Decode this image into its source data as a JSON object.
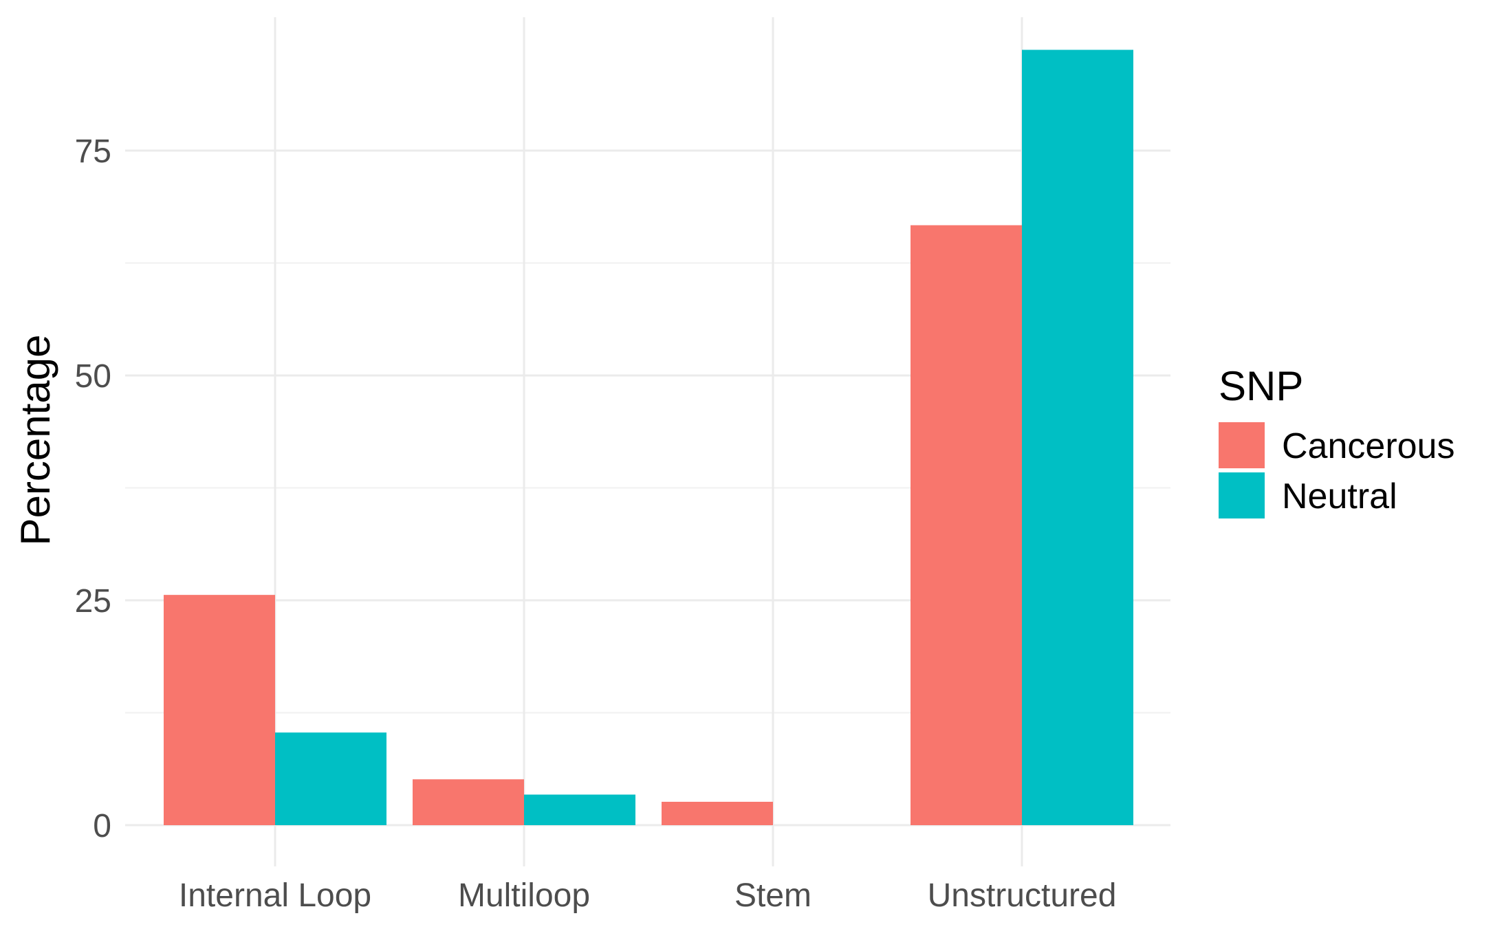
{
  "chart_data": {
    "type": "bar",
    "categories": [
      "Internal Loop",
      "Multiloop",
      "Stem",
      "Unstructured"
    ],
    "series": [
      {
        "name": "Cancerous",
        "color": "#F8766D",
        "values": [
          25.6,
          5.1,
          2.6,
          66.7
        ]
      },
      {
        "name": "Neutral",
        "color": "#00BFC4",
        "values": [
          10.3,
          3.4,
          0.0,
          86.2
        ]
      }
    ],
    "xlabel": "",
    "ylabel": "Percentage",
    "ylim": [
      0,
      87
    ],
    "yticks": [
      0,
      25,
      50,
      75
    ],
    "y_tick_labels": [
      "0",
      "25",
      "50",
      "75"
    ],
    "grid": true,
    "legend": {
      "title": "SNP",
      "position": "right"
    }
  }
}
